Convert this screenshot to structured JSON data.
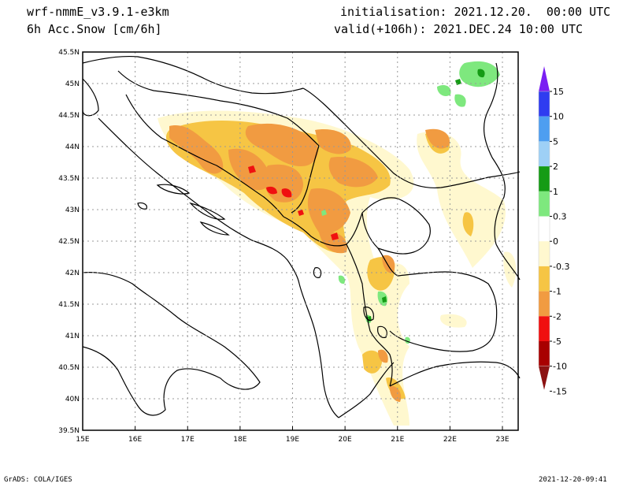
{
  "header": {
    "model": "wrf-nmmE_v3.9.1-e3km",
    "field": "6h Acc.Snow [cm/6h]",
    "init": "initialisation: 2021.12.20.  00:00 UTC",
    "valid": "valid(+106h): 2021.DEC.24 10:00 UTC"
  },
  "footer": {
    "credit": "GrADS: COLA/IGES",
    "timestamp": "2021-12-20-09:41"
  },
  "map": {
    "lon_ticks": [
      "15E",
      "16E",
      "17E",
      "18E",
      "19E",
      "20E",
      "21E",
      "22E",
      "23E"
    ],
    "lat_ticks": [
      "39.5N",
      "40N",
      "40.5N",
      "41N",
      "41.5N",
      "42N",
      "42.5N",
      "43N",
      "43.5N",
      "44N",
      "44.5N",
      "45N",
      "45.5N"
    ]
  },
  "colorbar": {
    "labels": [
      "15",
      "10",
      "5",
      "2",
      "1",
      "0.3",
      "0",
      "-0.3",
      "-1",
      "-2",
      "-5",
      "-10",
      "-15"
    ],
    "colors": [
      "#7a1ff2",
      "#2f3cf0",
      "#4e9ef0",
      "#9ed0f6",
      "#159b15",
      "#7ee87e",
      "#ffffff",
      "#fff8cf",
      "#f6c544",
      "#f19b41",
      "#f01010",
      "#a80000",
      "#8c1212"
    ]
  },
  "palette": {
    "light_yellow": "#fff8cf",
    "yellow": "#f6c544",
    "orange": "#f19b41",
    "red": "#f01010",
    "green_light": "#7ee87e",
    "green_dark": "#159b15"
  }
}
